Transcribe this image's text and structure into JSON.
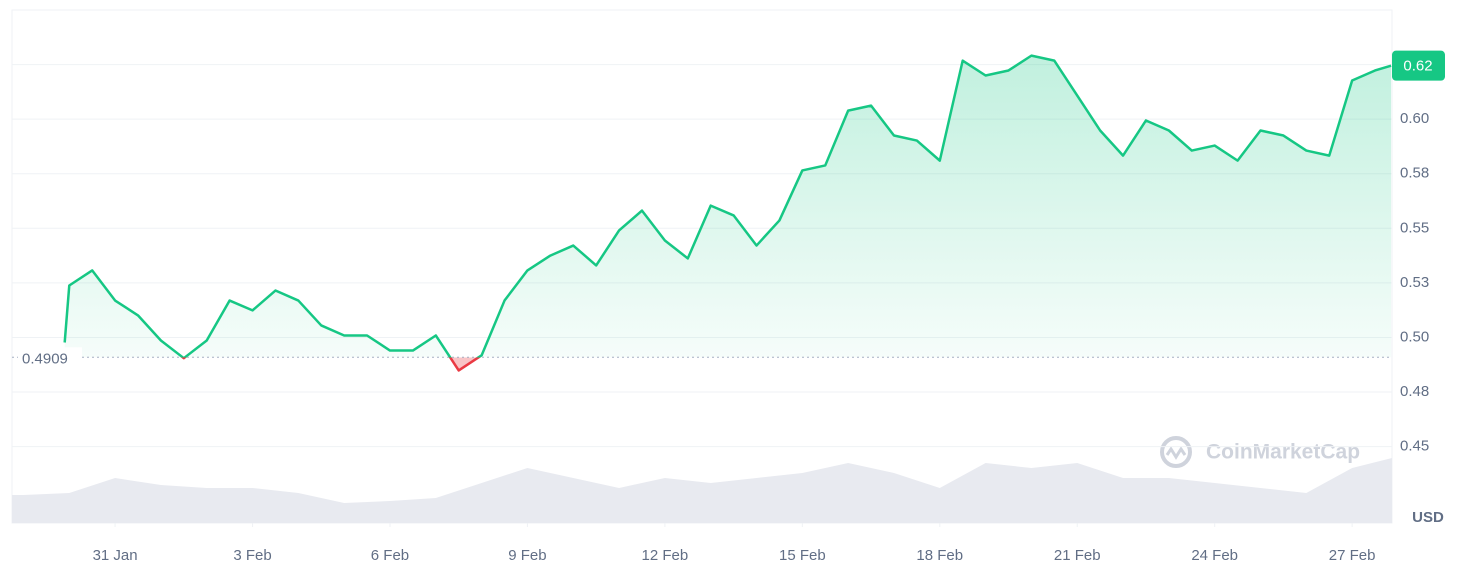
{
  "chart_data": {
    "type": "line",
    "x": [
      -1.1,
      -1,
      -0.5,
      0,
      0.5,
      1,
      1.5,
      2,
      2.5,
      3,
      3.5,
      4,
      4.5,
      5,
      5.5,
      6,
      6.5,
      7,
      7.5,
      8,
      8.5,
      9,
      9.5,
      10,
      10.5,
      11,
      11.5,
      12,
      12.5,
      13,
      13.5,
      14,
      14.5,
      15,
      15.5,
      16,
      16.5,
      17,
      17.5,
      18,
      18.5,
      19,
      19.5,
      20,
      20.5,
      21,
      21.5,
      22,
      22.5,
      23,
      23.5,
      24,
      24.5,
      25,
      25.5,
      26,
      26.5,
      27,
      27.5,
      27.85
    ],
    "series": [
      {
        "color": "#16c784",
        "down_color": "#ea3943",
        "values": [
          0.4977,
          0.5238,
          0.5307,
          0.5169,
          0.5101,
          0.4986,
          0.4905,
          0.4986,
          0.5169,
          0.5124,
          0.5215,
          0.5169,
          0.5055,
          0.5009,
          0.5009,
          0.494,
          0.494,
          0.5009,
          0.4849,
          0.4918,
          0.5169,
          0.5307,
          0.5375,
          0.5421,
          0.533,
          0.549,
          0.5581,
          0.5444,
          0.5362,
          0.5604,
          0.5559,
          0.5421,
          0.5536,
          0.5765,
          0.5788,
          0.6039,
          0.6062,
          0.5925,
          0.5902,
          0.581,
          0.6268,
          0.62,
          0.6223,
          0.6291,
          0.6268,
          0.6108,
          0.5948,
          0.5833,
          0.5994,
          0.5948,
          0.5856,
          0.5879,
          0.581,
          0.5948,
          0.5925,
          0.5856,
          0.5833,
          0.6177,
          0.6223,
          0.6245
        ]
      }
    ],
    "baseline": 0.4909,
    "last_label": "0.62",
    "xlim": [
      -2.25,
      27.87
    ],
    "xticks": [
      {
        "value": 0,
        "label": "31 Jan"
      },
      {
        "value": 3,
        "label": "3 Feb"
      },
      {
        "value": 6,
        "label": "6 Feb"
      },
      {
        "value": 9,
        "label": "9 Feb"
      },
      {
        "value": 12,
        "label": "12 Feb"
      },
      {
        "value": 15,
        "label": "15 Feb"
      },
      {
        "value": 18,
        "label": "18 Feb"
      },
      {
        "value": 21,
        "label": "21 Feb"
      },
      {
        "value": 24,
        "label": "24 Feb"
      },
      {
        "value": 27,
        "label": "27 Feb"
      }
    ],
    "ylim": [
      0.415,
      0.65
    ],
    "yticks": [
      0.45,
      {
        "value": 0.475,
        "label": "0.48"
      },
      {
        "value": 0.5,
        "label": "0.50"
      },
      {
        "value": 0.525,
        "label": "0.53"
      },
      0.55,
      {
        "value": 0.575,
        "label": "0.58"
      },
      {
        "value": 0.6,
        "label": "0.60"
      },
      {
        "value": 0.625,
        "label": "0.62"
      }
    ],
    "y_unit": "USD",
    "watermark": "CoinMarketCap",
    "grid": true,
    "volume": {
      "color": "#e8eaf0",
      "ylim": [
        0,
        100
      ],
      "x": [
        -2.25,
        -2,
        -1,
        0,
        1,
        2,
        3,
        4,
        5,
        6,
        7,
        8,
        9,
        10,
        11,
        12,
        13,
        14,
        15,
        16,
        17,
        18,
        19,
        20,
        21,
        22,
        23,
        24,
        25,
        26,
        27,
        27.87
      ],
      "values": [
        28,
        28,
        30,
        45,
        38,
        35,
        35,
        30,
        20,
        22,
        25,
        40,
        55,
        45,
        35,
        45,
        40,
        45,
        50,
        60,
        50,
        35,
        60,
        55,
        60,
        45,
        45,
        40,
        35,
        30,
        55,
        65
      ]
    }
  }
}
